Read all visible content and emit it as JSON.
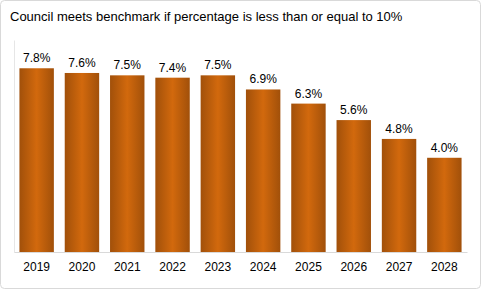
{
  "chart_data": {
    "type": "bar",
    "title": "Council meets benchmark if percentage is less than or equal to 10%",
    "categories": [
      "2019",
      "2020",
      "2021",
      "2022",
      "2023",
      "2024",
      "2025",
      "2026",
      "2027",
      "2028"
    ],
    "values": [
      7.8,
      7.6,
      7.5,
      7.4,
      7.5,
      6.9,
      6.3,
      5.6,
      4.8,
      4.0
    ],
    "value_labels": [
      "7.8%",
      "7.6%",
      "7.5%",
      "7.4%",
      "7.5%",
      "6.9%",
      "6.3%",
      "5.6%",
      "4.8%",
      "4.0%"
    ],
    "color": "#c0600c",
    "ylim": [
      0,
      9
    ],
    "yticks": [],
    "grid": false,
    "data_labels": true,
    "tick_labels": "x"
  }
}
